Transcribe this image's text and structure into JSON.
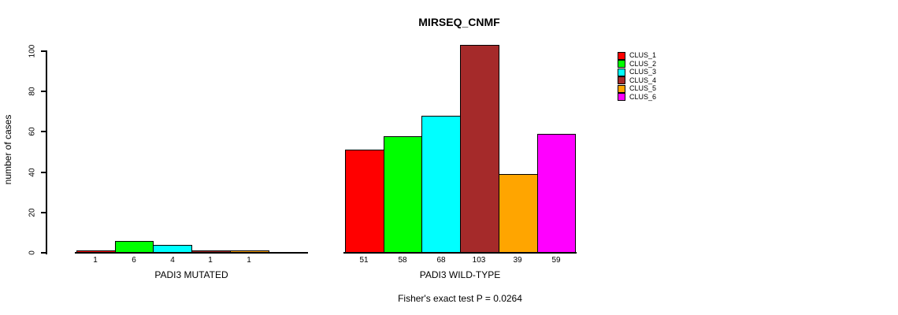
{
  "title": "MIRSEQ_CNMF",
  "chart_data": {
    "type": "bar",
    "title": "MIRSEQ_CNMF",
    "ylabel": "number of cases",
    "xlabel": "",
    "ylim": [
      0,
      100
    ],
    "yticks": [
      0,
      20,
      40,
      60,
      80,
      100
    ],
    "grid": false,
    "legend_position": "right",
    "series": [
      {
        "name": "CLUS_1",
        "color": "#FF0000",
        "values": [
          1,
          51
        ]
      },
      {
        "name": "CLUS_2",
        "color": "#00FF00",
        "values": [
          6,
          58
        ]
      },
      {
        "name": "CLUS_3",
        "color": "#00FFFF",
        "values": [
          4,
          68
        ]
      },
      {
        "name": "CLUS_4",
        "color": "#A52A2A",
        "values": [
          1,
          103
        ]
      },
      {
        "name": "CLUS_5",
        "color": "#FFA500",
        "values": [
          1,
          39
        ]
      },
      {
        "name": "CLUS_6",
        "color": "#FF00FF",
        "values": [
          0,
          59
        ]
      }
    ],
    "groups": [
      {
        "label": "PADI3 MUTATED",
        "values": [
          1,
          6,
          4,
          1,
          1,
          0
        ],
        "bar_labels": [
          "1",
          "6",
          "4",
          "1",
          "1",
          ""
        ]
      },
      {
        "label": "PADI3 WILD-TYPE",
        "values": [
          51,
          58,
          68,
          103,
          39,
          59
        ],
        "bar_labels": [
          "51",
          "58",
          "68",
          "103",
          "39",
          "59"
        ]
      }
    ],
    "annotation": "Fisher's exact test P = 0.0264",
    "axis_color": "#000000",
    "background_color": "#FFFFFF"
  }
}
